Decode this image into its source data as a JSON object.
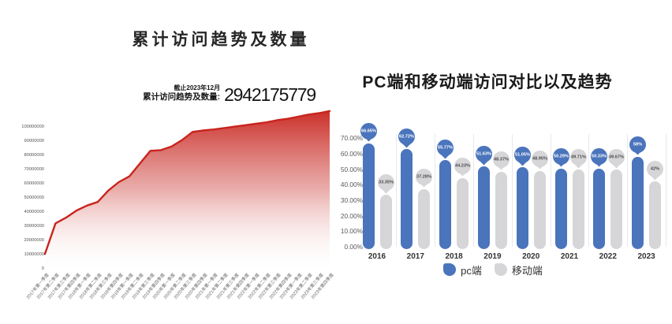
{
  "page": {
    "background": "#ffffff"
  },
  "left_chart": {
    "title": "累计访问趋势及数量",
    "annotation": {
      "caption_top": "截止2023年12月",
      "caption_bottom": "累计访问趋势及数量:",
      "value": "2942175779"
    },
    "line_color": "#c9241e"
  },
  "right_chart": {
    "title": "PC端和移动端访问对比以及趋势",
    "legend": [
      {
        "label": "pc端",
        "color": "#4a74bc"
      },
      {
        "label": "移动端",
        "color": "#d6d6d9"
      }
    ]
  },
  "chart_data": [
    {
      "type": "area",
      "title": "累计访问趋势及数量",
      "annotation": "截止2023年12月 累计访问趋势及数量: 2942175779",
      "x": [
        "2017年第一季度",
        "2017年第二季度",
        "2017年第三季度",
        "2017年第四季度",
        "2018年第一季度",
        "2018年第二季度",
        "2018年第三季度",
        "2018年第四季度",
        "2019年第一季度",
        "2019年第二季度",
        "2019年第三季度",
        "2019年第四季度",
        "2020年第一季度",
        "2020年第二季度",
        "2020年第三季度",
        "2020年第四季度",
        "2021年第一季度",
        "2021年第二季度",
        "2021年第三季度",
        "2021年第四季度",
        "2022年第一季度",
        "2022年第二季度",
        "2022年第三季度",
        "2022年第四季度",
        "2023年第一季度",
        "2023年第二季度",
        "2023年第三季度",
        "2023年第四季度"
      ],
      "values": [
        10500000,
        32000000,
        36000000,
        41000000,
        44500000,
        47000000,
        55000000,
        61000000,
        65000000,
        74000000,
        83000000,
        83500000,
        86000000,
        90500000,
        96300000,
        97300000,
        98000000,
        99000000,
        100000000,
        101000000,
        102000000,
        103000000,
        104500000,
        105500000,
        107000000,
        108500000,
        109500000,
        111000000
      ],
      "yticks": [
        0,
        10000000,
        20000000,
        30000000,
        40000000,
        50000000,
        60000000,
        70000000,
        80000000,
        90000000,
        100000000
      ],
      "ylim": [
        0,
        112000000
      ],
      "line_color": "#c9241e",
      "fill": "vertical gradient red to white",
      "grid": false,
      "legend_position": "none"
    },
    {
      "type": "bar",
      "title": "PC端和移动端访问对比以及趋势",
      "categories": [
        "2016",
        "2017",
        "2018",
        "2019",
        "2020",
        "2021",
        "2022",
        "2023"
      ],
      "series": [
        {
          "name": "pc端",
          "color": "#4a74bc",
          "values": [
            66.65,
            62.72,
            55.77,
            51.63,
            51.05,
            50.29,
            50.33,
            58
          ],
          "labels": [
            "66.65%",
            "62.72%",
            "55.77%",
            "51.63%",
            "51.05%",
            "50.29%",
            "50.33%",
            "58%"
          ]
        },
        {
          "name": "移动端",
          "color": "#d6d6d9",
          "values": [
            33.35,
            37.28,
            44.23,
            48.37,
            48.95,
            49.71,
            49.67,
            42
          ],
          "labels": [
            "33.35%",
            "37.28%",
            "44.23%",
            "48.37%",
            "48.95%",
            "49.71%",
            "49.67%",
            "42%"
          ]
        }
      ],
      "yticks": [
        "0.00%",
        "10.00%",
        "20.00%",
        "30.00%",
        "40.00%",
        "50.00%",
        "60.00%",
        "70.00%"
      ],
      "ylim": [
        0,
        70
      ],
      "grid": false,
      "legend_position": "bottom"
    }
  ]
}
